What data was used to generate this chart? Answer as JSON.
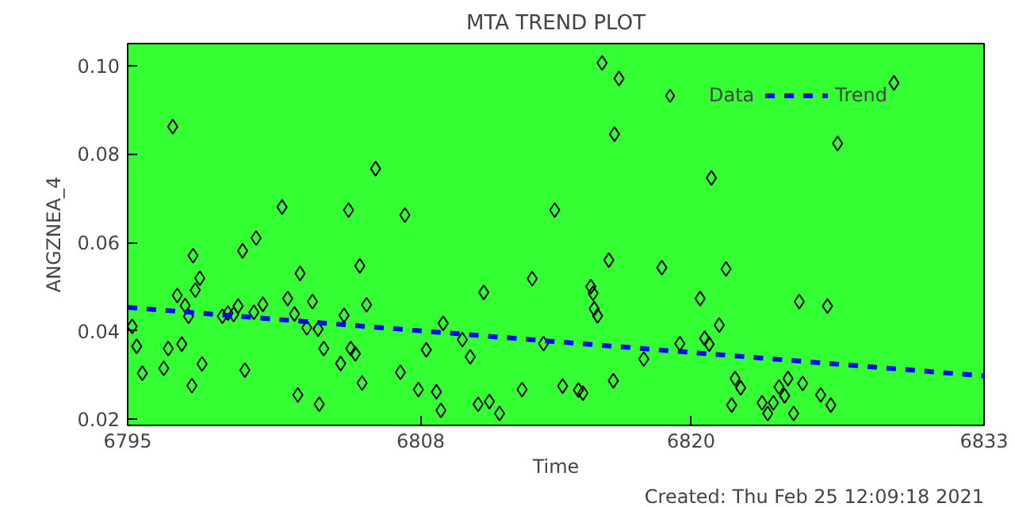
{
  "chart_data": {
    "type": "scatter",
    "title": "MTA TREND PLOT",
    "xlabel": "Time",
    "ylabel": "ANGZNEA_4",
    "annotations": [
      "Created: Thu Feb 25 12:09:18 2021"
    ],
    "xlim": [
      6795,
      6833
    ],
    "xticks": [
      6795,
      6808,
      6820,
      6833
    ],
    "ylim": [
      0.0186,
      0.105
    ],
    "yticks": [
      {
        "value": 0.02,
        "label": "0.02"
      },
      {
        "value": 0.04,
        "label": "0.04"
      },
      {
        "value": 0.06,
        "label": "0.06"
      },
      {
        "value": 0.08,
        "label": "0.08"
      },
      {
        "value": 0.1,
        "label": "0.10"
      }
    ],
    "grid": false,
    "legend": "top right",
    "series": [
      {
        "name": "Data",
        "marker": "diamond",
        "color": "#000000",
        "x": [
          6795.2,
          6795.4,
          6795.65,
          6797.0,
          6796.6,
          6796.8,
          6797.2,
          6797.4,
          6797.55,
          6797.7,
          6797.9,
          6797.85,
          6798.0,
          6798.2,
          6798.3,
          6799.2,
          6799.45,
          6799.7,
          6799.9,
          6800.1,
          6800.2,
          6800.6,
          6800.7,
          6801.0,
          6801.85,
          6802.1,
          6802.4,
          6802.55,
          6802.65,
          6802.95,
          6803.2,
          6803.45,
          6803.5,
          6803.7,
          6804.45,
          6804.6,
          6804.8,
          6804.9,
          6805.1,
          6805.3,
          6805.4,
          6805.6,
          6806.0,
          6807.1,
          6807.3,
          6807.9,
          6808.25,
          6808.7,
          6808.9,
          6809.0,
          6809.85,
          6810.2,
          6810.55,
          6810.8,
          6811.05,
          6811.5,
          6812.5,
          6812.95,
          6813.45,
          6813.95,
          6814.3,
          6815.0,
          6815.2,
          6815.55,
          6815.65,
          6815.7,
          6815.85,
          6816.05,
          6816.35,
          6816.55,
          6816.6,
          6816.8,
          6817.9,
          6818.7,
          6819.5,
          6820.4,
          6820.6,
          6820.8,
          6820.9,
          6821.25,
          6821.55,
          6821.95,
          6822.2,
          6821.8,
          6823.15,
          6823.4,
          6823.65,
          6823.9,
          6824.15,
          6824.3,
          6824.8,
          6824.95,
          6824.55,
          6825.75,
          6826.05,
          6826.2,
          6826.5,
          6829.0
        ],
        "values": [
          0.041,
          0.0365,
          0.0304,
          0.0862,
          0.0315,
          0.036,
          0.048,
          0.037,
          0.0457,
          0.0433,
          0.057,
          0.0276,
          0.0492,
          0.0519,
          0.0325,
          0.0433,
          0.044,
          0.0437,
          0.0456,
          0.0581,
          0.0311,
          0.0442,
          0.061,
          0.046,
          0.068,
          0.0473,
          0.0438,
          0.0255,
          0.053,
          0.0407,
          0.0466,
          0.0404,
          0.0234,
          0.036,
          0.0326,
          0.0435,
          0.0673,
          0.036,
          0.0348,
          0.0547,
          0.0282,
          0.0459,
          0.0767,
          0.0306,
          0.0662,
          0.0267,
          0.0357,
          0.0262,
          0.022,
          0.0417,
          0.038,
          0.0341,
          0.0234,
          0.0487,
          0.024,
          0.0213,
          0.0267,
          0.0518,
          0.0371,
          0.0673,
          0.0275,
          0.0266,
          0.0259,
          0.05,
          0.0485,
          0.045,
          0.0434,
          0.1006,
          0.056,
          0.0287,
          0.0845,
          0.0971,
          0.0336,
          0.0543,
          0.0371,
          0.0473,
          0.0383,
          0.037,
          0.0746,
          0.0413,
          0.054,
          0.0292,
          0.0271,
          0.0232,
          0.0237,
          0.0213,
          0.0237,
          0.0273,
          0.0253,
          0.0292,
          0.0466,
          0.0281,
          0.0213,
          0.0255,
          0.0456,
          0.0232,
          0.0824,
          0.0961
        ]
      },
      {
        "name": "Trend",
        "type": "line",
        "color": "#0000ff",
        "line_style": "dashed",
        "x": [
          6795,
          6833
        ],
        "values": [
          0.0453,
          0.0298
        ]
      }
    ]
  }
}
